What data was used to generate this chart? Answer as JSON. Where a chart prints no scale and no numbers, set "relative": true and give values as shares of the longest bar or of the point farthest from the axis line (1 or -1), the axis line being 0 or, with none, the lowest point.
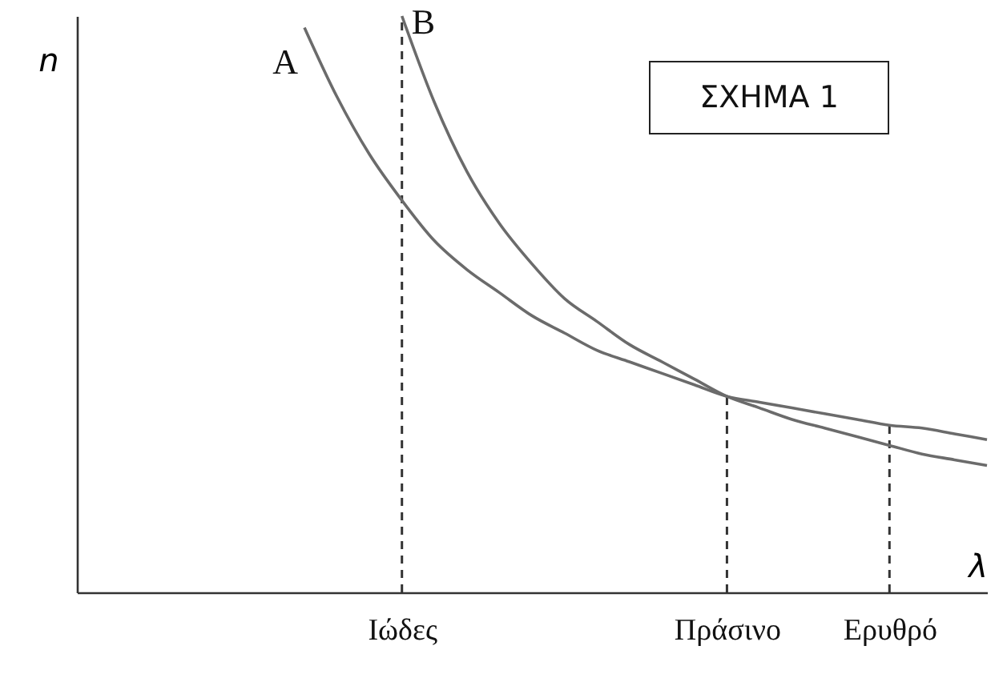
{
  "chart_data": {
    "type": "line",
    "title": "ΣΧΗΜΑ 1",
    "xlabel": "λ",
    "ylabel": "n",
    "relative": true,
    "grid": false,
    "marker": "none",
    "line_style": "solid",
    "categories": [
      null,
      null,
      null,
      null,
      null,
      null,
      null,
      null,
      null,
      null,
      "Ιώδες",
      null,
      null,
      null,
      null,
      null,
      null,
      null,
      null,
      null,
      "Πράσινο",
      null,
      null,
      null,
      null,
      "Ερυθρό",
      null,
      null,
      null
    ],
    "series": [
      {
        "name": "A",
        "color": "#6b6b6b",
        "values": [
          null,
          null,
          null,
          null,
          null,
          null,
          null,
          0.98,
          0.86,
          0.76,
          0.68,
          0.61,
          0.56,
          0.52,
          0.48,
          0.45,
          0.42,
          0.4,
          0.38,
          0.36,
          0.34,
          0.33,
          0.32,
          0.31,
          0.3,
          0.29,
          0.285,
          0.275,
          0.265
        ]
      },
      {
        "name": "B",
        "color": "#6b6b6b",
        "values": [
          null,
          null,
          null,
          null,
          null,
          null,
          null,
          null,
          null,
          null,
          1.0,
          0.85,
          0.73,
          0.64,
          0.57,
          0.51,
          0.47,
          0.43,
          0.4,
          0.37,
          0.34,
          0.32,
          0.3,
          0.285,
          0.27,
          0.255,
          0.24,
          0.23,
          0.22
        ]
      }
    ],
    "ref_lines": [
      {
        "axis": "x",
        "value": "Ιώδες",
        "line_style": "dashed",
        "color": "#333333"
      },
      {
        "axis": "x",
        "value": "Πράσινο",
        "line_style": "dashed",
        "color": "#333333"
      },
      {
        "axis": "x",
        "value": "Ερυθρό",
        "line_style": "dashed",
        "color": "#333333"
      }
    ]
  }
}
